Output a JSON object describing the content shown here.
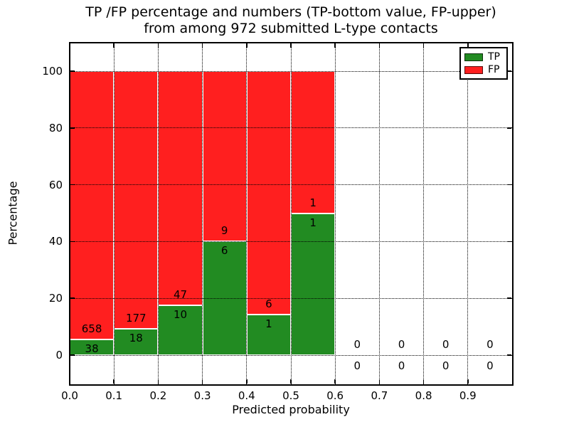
{
  "title": {
    "line1": "TP /FP percentage and numbers (TP-bottom value, FP-upper)",
    "line2": "from among 972 submitted L-type contacts"
  },
  "chart_data": {
    "type": "bar",
    "stacked": true,
    "normalized_to_percent": 100,
    "title": "TP /FP percentage and numbers (TP-bottom value, FP-upper) from among 972 submitted L-type contacts",
    "xlabel": "Predicted probability",
    "ylabel": "Percentage",
    "xlim": [
      0.0,
      1.0
    ],
    "ylim": [
      -10,
      110
    ],
    "xtick_labels": [
      "0.0",
      "0.1",
      "0.2",
      "0.3",
      "0.4",
      "0.5",
      "0.6",
      "0.7",
      "0.8",
      "0.9"
    ],
    "yticks": [
      0,
      20,
      40,
      60,
      80,
      100
    ],
    "grid": "dotted",
    "legend_position": "upper right",
    "total_contacts": 972,
    "bins": [
      {
        "range": [
          0.0,
          0.1
        ],
        "tp": 38,
        "fp": 658
      },
      {
        "range": [
          0.1,
          0.2
        ],
        "tp": 18,
        "fp": 177
      },
      {
        "range": [
          0.2,
          0.3
        ],
        "tp": 10,
        "fp": 47
      },
      {
        "range": [
          0.3,
          0.4
        ],
        "tp": 6,
        "fp": 9
      },
      {
        "range": [
          0.4,
          0.5
        ],
        "tp": 1,
        "fp": 6
      },
      {
        "range": [
          0.5,
          0.6
        ],
        "tp": 1,
        "fp": 1
      },
      {
        "range": [
          0.6,
          0.7
        ],
        "tp": 0,
        "fp": 0
      },
      {
        "range": [
          0.7,
          0.8
        ],
        "tp": 0,
        "fp": 0
      },
      {
        "range": [
          0.8,
          0.9
        ],
        "tp": 0,
        "fp": 0
      },
      {
        "range": [
          0.9,
          1.0
        ],
        "tp": 0,
        "fp": 0
      }
    ],
    "series": [
      {
        "name": "TP",
        "color": "#228b22",
        "counts": [
          38,
          18,
          10,
          6,
          1,
          1,
          0,
          0,
          0,
          0
        ]
      },
      {
        "name": "FP",
        "color": "#ff1f1f",
        "counts": [
          658,
          177,
          47,
          9,
          6,
          1,
          0,
          0,
          0,
          0
        ]
      }
    ]
  },
  "legend": {
    "items": [
      {
        "label": "TP",
        "color": "#228b22"
      },
      {
        "label": "FP",
        "color": "#ff1f1f"
      }
    ]
  },
  "colors": {
    "tp": "#228b22",
    "fp": "#ff1f1f",
    "grid": "#000000",
    "spine": "#000000",
    "bar_edge": "#ffffff",
    "background": "#ffffff"
  }
}
